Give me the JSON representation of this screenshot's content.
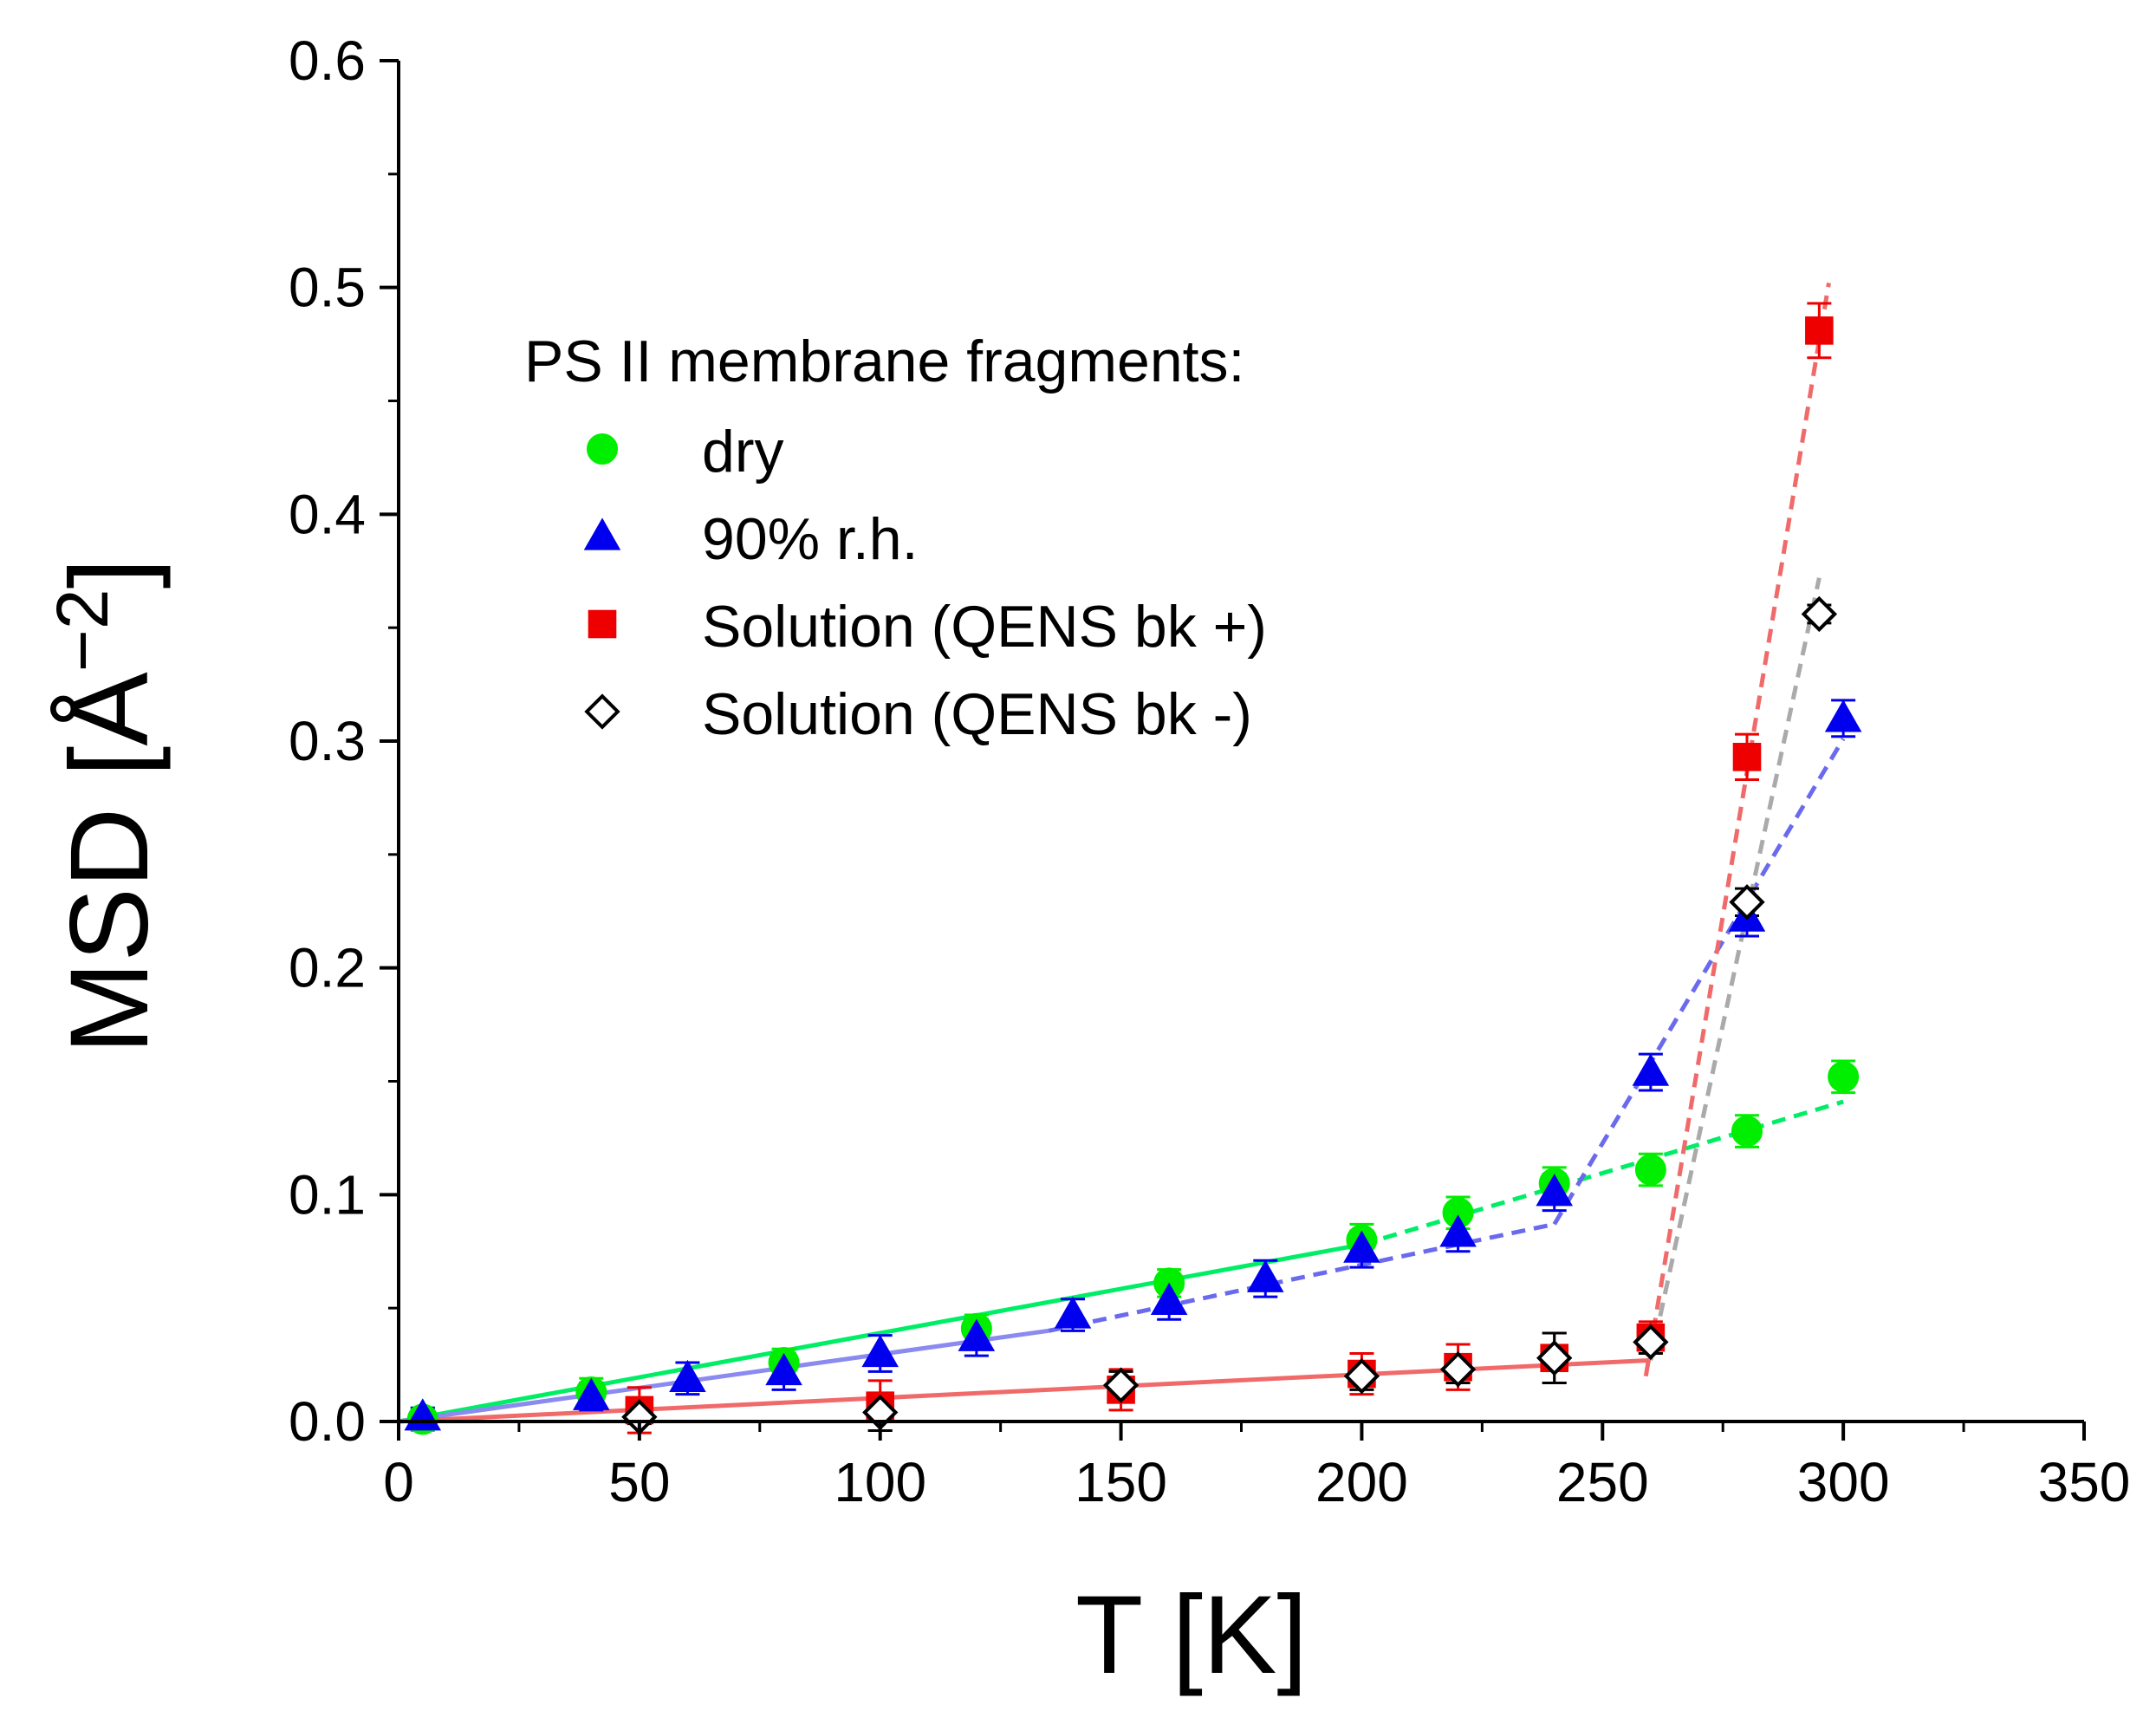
{
  "chart_data": {
    "type": "scatter",
    "title": "",
    "xlabel": "T [K]",
    "ylabel_main": "MSD [Å",
    "ylabel_sup": "−2",
    "ylabel_close": "]",
    "xlim": [
      0,
      350
    ],
    "ylim": [
      0,
      0.6
    ],
    "xticks": [
      0,
      50,
      100,
      150,
      200,
      250,
      300,
      350
    ],
    "yticks": [
      0.0,
      0.1,
      0.2,
      0.3,
      0.4,
      0.5,
      0.6
    ],
    "xtick_labels": [
      "0",
      "50",
      "100",
      "150",
      "200",
      "250",
      "300",
      "350"
    ],
    "ytick_labels": [
      "0.0",
      "0.1",
      "0.2",
      "0.3",
      "0.4",
      "0.5",
      "0.6"
    ],
    "grid": false,
    "legend": {
      "title": "PS II membrane fragments:",
      "position": "upper-left-center"
    },
    "series": [
      {
        "name": "dry",
        "marker": "circle",
        "color": "#00ee00",
        "filled": true,
        "x": [
          5,
          40,
          80,
          120,
          160,
          200,
          220,
          240,
          260,
          280,
          300
        ],
        "y": [
          0.001,
          0.013,
          0.026,
          0.041,
          0.061,
          0.08,
          0.092,
          0.105,
          0.111,
          0.128,
          0.152
        ],
        "err": [
          0.005,
          0.006,
          0.006,
          0.006,
          0.006,
          0.007,
          0.007,
          0.007,
          0.007,
          0.007,
          0.007
        ]
      },
      {
        "name": "90% r.h.",
        "marker": "triangle",
        "color": "#0000ee",
        "filled": true,
        "x": [
          5,
          40,
          60,
          80,
          100,
          120,
          140,
          160,
          180,
          200,
          220,
          240,
          260,
          280,
          300
        ],
        "y": [
          0.002,
          0.011,
          0.019,
          0.022,
          0.03,
          0.037,
          0.047,
          0.053,
          0.063,
          0.076,
          0.083,
          0.101,
          0.154,
          0.222,
          0.31
        ],
        "err": [
          0.004,
          0.006,
          0.007,
          0.008,
          0.008,
          0.008,
          0.007,
          0.008,
          0.008,
          0.008,
          0.008,
          0.008,
          0.008,
          0.008,
          0.008
        ]
      },
      {
        "name": "Solution (QENS bk +)",
        "marker": "square",
        "color": "#ee0000",
        "filled": true,
        "x": [
          50,
          100,
          150,
          200,
          220,
          240,
          260,
          280,
          295
        ],
        "y": [
          0.005,
          0.007,
          0.014,
          0.021,
          0.024,
          0.028,
          0.037,
          0.293,
          0.481
        ],
        "err": [
          0.01,
          0.011,
          0.009,
          0.009,
          0.01,
          0.011,
          0.007,
          0.01,
          0.012
        ]
      },
      {
        "name": "Solution (QENS bk -)",
        "marker": "diamond",
        "color": "#000000",
        "filled": false,
        "x": [
          50,
          100,
          150,
          200,
          220,
          240,
          260,
          280,
          295
        ],
        "y": [
          0.002,
          0.004,
          0.016,
          0.02,
          0.023,
          0.028,
          0.035,
          0.229,
          0.356
        ],
        "err": [
          0.003,
          0.008,
          0.006,
          0.006,
          0.006,
          0.011,
          0.005,
          0.006,
          0.004
        ]
      }
    ],
    "fit_lines": [
      {
        "name": "dry-fit-low",
        "color": "#00ee66",
        "style": "solid",
        "x": [
          0,
          200
        ],
        "y": [
          0.0,
          0.078
        ]
      },
      {
        "name": "dry-fit-high",
        "color": "#00ee66",
        "style": "dashed",
        "x": [
          200,
          300
        ],
        "y": [
          0.078,
          0.141
        ]
      },
      {
        "name": "rh-fit-low",
        "color": "#8a8af0",
        "style": "solid",
        "x": [
          0,
          135
        ],
        "y": [
          0.0,
          0.04
        ]
      },
      {
        "name": "rh-fit-mid",
        "color": "#6a6aee",
        "style": "dashed",
        "x": [
          135,
          240
        ],
        "y": [
          0.04,
          0.087
        ]
      },
      {
        "name": "rh-fit-high",
        "color": "#6a6aee",
        "style": "dashed",
        "x": [
          240,
          300
        ],
        "y": [
          0.087,
          0.301
        ]
      },
      {
        "name": "solution-fit-low",
        "color": "#f06a6a",
        "style": "solid",
        "x": [
          0,
          260
        ],
        "y": [
          0.0,
          0.027
        ]
      },
      {
        "name": "solution-plus-fit-high",
        "color": "#f06a6a",
        "style": "dashed",
        "x": [
          259,
          297
        ],
        "y": [
          0.02,
          0.502
        ]
      },
      {
        "name": "solution-minus-fit-high",
        "color": "#aaaaaa",
        "style": "dashed",
        "x": [
          260,
          295
        ],
        "y": [
          0.027,
          0.372
        ]
      }
    ]
  }
}
